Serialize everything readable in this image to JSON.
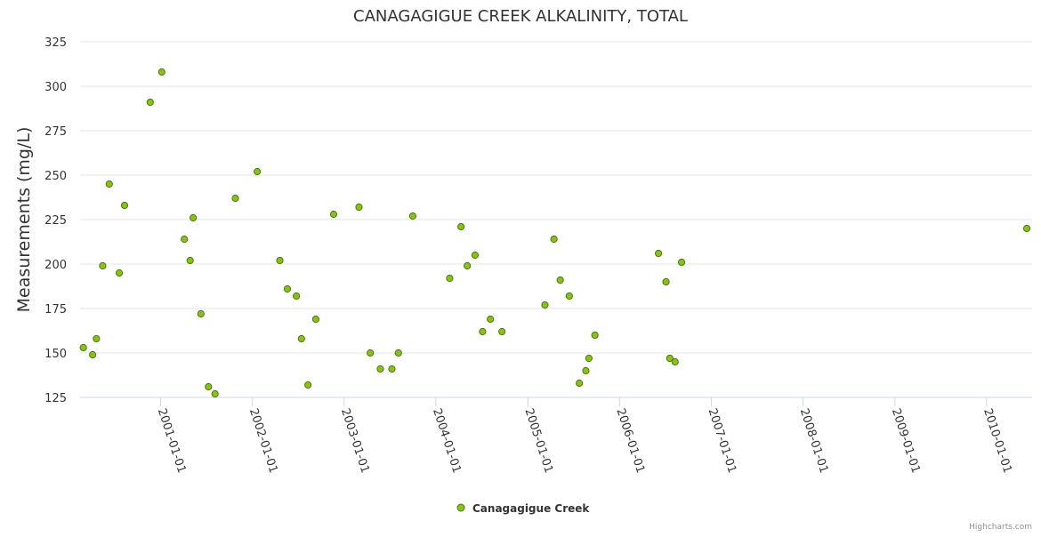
{
  "chart_data": {
    "type": "scatter",
    "title": "CANAGAGIGUE CREEK ALKALINITY, TOTAL",
    "ylabel": "Measurements (mg/L)",
    "xlabel": "",
    "ylim": [
      125,
      325
    ],
    "y_ticks": [
      125,
      150,
      175,
      200,
      225,
      250,
      275,
      300,
      325
    ],
    "x_range": [
      "2000-02-15",
      "2010-07-01"
    ],
    "x_ticks": [
      "2001-01-01",
      "2002-01-01",
      "2003-01-01",
      "2004-01-01",
      "2005-01-01",
      "2006-01-01",
      "2007-01-01",
      "2008-01-01",
      "2009-01-01",
      "2010-01-01"
    ],
    "grid": true,
    "legend_position": "bottom-center",
    "credits": "Highcharts.com",
    "marker_color": "#88c01f",
    "marker_stroke": "#4a7a00",
    "series": [
      {
        "name": "Canagagigue Creek",
        "points": [
          [
            "2000-02-28",
            153
          ],
          [
            "2000-04-05",
            149
          ],
          [
            "2000-04-20",
            158
          ],
          [
            "2000-05-15",
            199
          ],
          [
            "2000-06-10",
            245
          ],
          [
            "2000-07-20",
            195
          ],
          [
            "2000-08-10",
            233
          ],
          [
            "2000-11-20",
            291
          ],
          [
            "2001-01-05",
            308
          ],
          [
            "2001-04-05",
            214
          ],
          [
            "2001-04-28",
            202
          ],
          [
            "2001-05-10",
            226
          ],
          [
            "2001-06-10",
            172
          ],
          [
            "2001-07-10",
            131
          ],
          [
            "2001-08-05",
            127
          ],
          [
            "2001-10-25",
            237
          ],
          [
            "2002-01-20",
            252
          ],
          [
            "2002-04-20",
            202
          ],
          [
            "2002-05-20",
            186
          ],
          [
            "2002-06-25",
            182
          ],
          [
            "2002-07-15",
            158
          ],
          [
            "2002-08-10",
            132
          ],
          [
            "2002-09-10",
            169
          ],
          [
            "2002-11-20",
            228
          ],
          [
            "2003-03-01",
            232
          ],
          [
            "2003-04-15",
            150
          ],
          [
            "2003-05-25",
            141
          ],
          [
            "2003-07-10",
            141
          ],
          [
            "2003-08-05",
            150
          ],
          [
            "2003-10-01",
            227
          ],
          [
            "2004-02-25",
            192
          ],
          [
            "2004-04-10",
            221
          ],
          [
            "2004-05-05",
            199
          ],
          [
            "2004-06-05",
            205
          ],
          [
            "2004-07-05",
            162
          ],
          [
            "2004-08-05",
            169
          ],
          [
            "2004-09-20",
            162
          ],
          [
            "2005-03-10",
            177
          ],
          [
            "2005-04-15",
            214
          ],
          [
            "2005-05-10",
            191
          ],
          [
            "2005-06-15",
            182
          ],
          [
            "2005-07-25",
            133
          ],
          [
            "2005-08-20",
            140
          ],
          [
            "2005-09-01",
            147
          ],
          [
            "2005-09-25",
            160
          ],
          [
            "2006-06-05",
            206
          ],
          [
            "2006-07-05",
            190
          ],
          [
            "2006-07-20",
            147
          ],
          [
            "2006-08-10",
            145
          ],
          [
            "2006-09-05",
            201
          ],
          [
            "2010-06-10",
            220
          ]
        ]
      }
    ]
  }
}
